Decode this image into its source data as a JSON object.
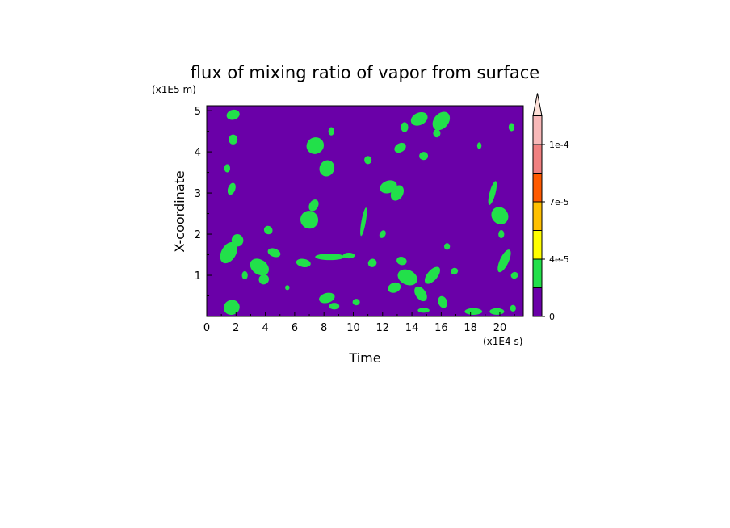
{
  "chart_data": {
    "type": "heatmap",
    "title": "flux of mixing ratio of vapor from surface",
    "xlabel": "Time",
    "ylabel": "X-coordinate",
    "x_unit": "(x1E4 s)",
    "y_unit": "(x1E5 m)",
    "xlim": [
      0,
      21.6
    ],
    "ylim": [
      0,
      5.12
    ],
    "x_ticks": [
      "0",
      "2",
      "4",
      "6",
      "8",
      "10",
      "12",
      "14",
      "16",
      "18",
      "20"
    ],
    "y_ticks": [
      "1",
      "2",
      "3",
      "4",
      "5"
    ],
    "background_level_color": "#6a00a8",
    "colorbar": {
      "levels": [
        {
          "color": "#6a00a8"
        },
        {
          "color": "#22e04a"
        },
        {
          "color": "#ffff00"
        },
        {
          "color": "#ffc000"
        },
        {
          "color": "#ff5a00"
        },
        {
          "color": "#f08080"
        },
        {
          "color": "#f8b8b8"
        }
      ],
      "arrow_color": "#fde0d8",
      "tick_labels": [
        {
          "label": "0",
          "at_level": 0
        },
        {
          "label": "4e-5",
          "at_level": 2
        },
        {
          "label": "7e-5",
          "at_level": 4
        },
        {
          "label": "1e-4",
          "at_level": 6
        }
      ]
    },
    "green_patches": [
      {
        "x": 1.7,
        "y": 0.22,
        "rx": 0.55,
        "ry": 0.18,
        "rot": -20
      },
      {
        "x": 1.5,
        "y": 1.55,
        "rx": 0.5,
        "ry": 0.28,
        "rot": 30
      },
      {
        "x": 2.1,
        "y": 1.85,
        "rx": 0.4,
        "ry": 0.15,
        "rot": -10
      },
      {
        "x": 1.8,
        "y": 4.3,
        "rx": 0.3,
        "ry": 0.12,
        "rot": 0
      },
      {
        "x": 1.8,
        "y": 4.9,
        "rx": 0.45,
        "ry": 0.12,
        "rot": -15
      },
      {
        "x": 1.7,
        "y": 3.1,
        "rx": 0.25,
        "ry": 0.15,
        "rot": 20
      },
      {
        "x": 1.4,
        "y": 3.6,
        "rx": 0.2,
        "ry": 0.1,
        "rot": 0
      },
      {
        "x": 3.6,
        "y": 1.2,
        "rx": 0.7,
        "ry": 0.18,
        "rot": 35
      },
      {
        "x": 3.9,
        "y": 0.9,
        "rx": 0.35,
        "ry": 0.12,
        "rot": -40
      },
      {
        "x": 4.6,
        "y": 1.55,
        "rx": 0.45,
        "ry": 0.1,
        "rot": 20
      },
      {
        "x": 4.2,
        "y": 2.1,
        "rx": 0.3,
        "ry": 0.1,
        "rot": 40
      },
      {
        "x": 7.4,
        "y": 4.15,
        "rx": 0.6,
        "ry": 0.2,
        "rot": -30
      },
      {
        "x": 8.2,
        "y": 3.6,
        "rx": 0.5,
        "ry": 0.2,
        "rot": 25
      },
      {
        "x": 8.5,
        "y": 4.5,
        "rx": 0.2,
        "ry": 0.1,
        "rot": 0
      },
      {
        "x": 7.0,
        "y": 2.35,
        "rx": 0.6,
        "ry": 0.22,
        "rot": -45
      },
      {
        "x": 7.3,
        "y": 2.7,
        "rx": 0.3,
        "ry": 0.15,
        "rot": 30
      },
      {
        "x": 6.6,
        "y": 1.3,
        "rx": 0.5,
        "ry": 0.1,
        "rot": 10
      },
      {
        "x": 8.4,
        "y": 1.45,
        "rx": 1.0,
        "ry": 0.08,
        "rot": 0
      },
      {
        "x": 9.7,
        "y": 1.48,
        "rx": 0.4,
        "ry": 0.07,
        "rot": 0
      },
      {
        "x": 8.2,
        "y": 0.45,
        "rx": 0.55,
        "ry": 0.12,
        "rot": -15
      },
      {
        "x": 8.7,
        "y": 0.25,
        "rx": 0.35,
        "ry": 0.08,
        "rot": 0
      },
      {
        "x": 10.7,
        "y": 2.3,
        "rx": 0.15,
        "ry": 0.35,
        "rot": 10
      },
      {
        "x": 11.3,
        "y": 1.3,
        "rx": 0.3,
        "ry": 0.1,
        "rot": -30
      },
      {
        "x": 11.0,
        "y": 3.8,
        "rx": 0.25,
        "ry": 0.1,
        "rot": 0
      },
      {
        "x": 12.4,
        "y": 3.15,
        "rx": 0.6,
        "ry": 0.15,
        "rot": -20
      },
      {
        "x": 13.0,
        "y": 3.0,
        "rx": 0.4,
        "ry": 0.2,
        "rot": 30
      },
      {
        "x": 13.2,
        "y": 4.1,
        "rx": 0.3,
        "ry": 0.15,
        "rot": 60
      },
      {
        "x": 13.5,
        "y": 4.6,
        "rx": 0.25,
        "ry": 0.12,
        "rot": 0
      },
      {
        "x": 14.5,
        "y": 4.8,
        "rx": 0.6,
        "ry": 0.15,
        "rot": -25
      },
      {
        "x": 16.0,
        "y": 4.75,
        "rx": 0.5,
        "ry": 0.25,
        "rot": 40
      },
      {
        "x": 15.7,
        "y": 4.45,
        "rx": 0.25,
        "ry": 0.1,
        "rot": 0
      },
      {
        "x": 14.8,
        "y": 3.9,
        "rx": 0.3,
        "ry": 0.1,
        "rot": 0
      },
      {
        "x": 13.7,
        "y": 0.95,
        "rx": 0.7,
        "ry": 0.18,
        "rot": 25
      },
      {
        "x": 12.8,
        "y": 0.7,
        "rx": 0.45,
        "ry": 0.12,
        "rot": -20
      },
      {
        "x": 13.3,
        "y": 1.35,
        "rx": 0.35,
        "ry": 0.1,
        "rot": 15
      },
      {
        "x": 14.6,
        "y": 0.55,
        "rx": 0.35,
        "ry": 0.2,
        "rot": -35
      },
      {
        "x": 15.4,
        "y": 1.0,
        "rx": 0.35,
        "ry": 0.25,
        "rot": 40
      },
      {
        "x": 16.1,
        "y": 0.35,
        "rx": 0.3,
        "ry": 0.15,
        "rot": -20
      },
      {
        "x": 14.8,
        "y": 0.15,
        "rx": 0.4,
        "ry": 0.06,
        "rot": 0
      },
      {
        "x": 16.4,
        "y": 1.7,
        "rx": 0.2,
        "ry": 0.08,
        "rot": 0
      },
      {
        "x": 18.2,
        "y": 0.12,
        "rx": 0.6,
        "ry": 0.08,
        "rot": 0
      },
      {
        "x": 19.8,
        "y": 0.12,
        "rx": 0.5,
        "ry": 0.08,
        "rot": 0
      },
      {
        "x": 19.5,
        "y": 3.0,
        "rx": 0.2,
        "ry": 0.3,
        "rot": 15
      },
      {
        "x": 20.0,
        "y": 2.45,
        "rx": 0.55,
        "ry": 0.22,
        "rot": -40
      },
      {
        "x": 20.3,
        "y": 1.35,
        "rx": 0.3,
        "ry": 0.3,
        "rot": 25
      },
      {
        "x": 20.1,
        "y": 2.0,
        "rx": 0.2,
        "ry": 0.1,
        "rot": 0
      },
      {
        "x": 20.8,
        "y": 4.6,
        "rx": 0.2,
        "ry": 0.1,
        "rot": 0
      },
      {
        "x": 21.0,
        "y": 1.0,
        "rx": 0.25,
        "ry": 0.08,
        "rot": -20
      },
      {
        "x": 18.6,
        "y": 4.15,
        "rx": 0.15,
        "ry": 0.08,
        "rot": 0
      },
      {
        "x": 20.9,
        "y": 0.2,
        "rx": 0.2,
        "ry": 0.08,
        "rot": 0
      },
      {
        "x": 2.6,
        "y": 1.0,
        "rx": 0.2,
        "ry": 0.1,
        "rot": 0
      },
      {
        "x": 5.5,
        "y": 0.7,
        "rx": 0.15,
        "ry": 0.06,
        "rot": 0
      },
      {
        "x": 10.2,
        "y": 0.35,
        "rx": 0.25,
        "ry": 0.08,
        "rot": 0
      },
      {
        "x": 12.0,
        "y": 2.0,
        "rx": 0.2,
        "ry": 0.1,
        "rot": 30
      },
      {
        "x": 16.9,
        "y": 1.1,
        "rx": 0.25,
        "ry": 0.08,
        "rot": -25
      }
    ]
  }
}
